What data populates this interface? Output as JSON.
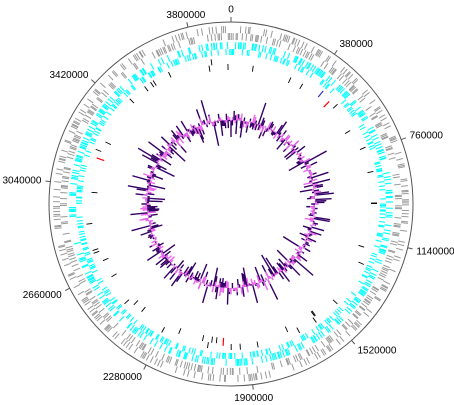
{
  "map": {
    "tick_labels": [
      "0",
      "380000",
      "760000",
      "1140000",
      "1520000",
      "1900000",
      "2280000",
      "2660000",
      "3040000",
      "3420000",
      "3800000"
    ],
    "tick_positions": [
      0,
      380000,
      760000,
      1140000,
      1520000,
      1900000,
      2280000,
      2660000,
      3040000,
      3420000,
      3800000
    ],
    "genome_length": 3950000,
    "tracks": [
      {
        "name": "outer-gene-ticks",
        "color": "#999999"
      },
      {
        "name": "inner-gene-ticks",
        "color": "#00ffff"
      },
      {
        "name": "feature-marks",
        "color": "#000000"
      },
      {
        "name": "rna-marks",
        "color": "#ff0000"
      },
      {
        "name": "special-mark",
        "color": "#3333cc"
      }
    ],
    "red_mark_positions": [
      480000,
      3170000,
      2010000
    ],
    "blue_mark_positions": [
      430000
    ],
    "gc_content_color": "#330066",
    "gc_skew_color": "#ee66ee",
    "frame_color": "#555555"
  }
}
